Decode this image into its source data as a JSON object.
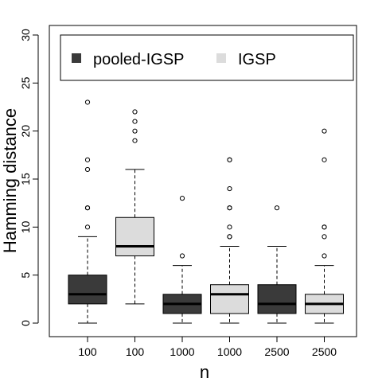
{
  "chart_data": {
    "type": "boxplot",
    "title": "",
    "xlabel": "n",
    "ylabel": "Hamming distance",
    "ylim": [
      0,
      30
    ],
    "yticks": [
      0,
      5,
      10,
      15,
      20,
      25,
      30
    ],
    "categories": [
      "100",
      "100",
      "1000",
      "1000",
      "2500",
      "2500"
    ],
    "legend": {
      "placement": "top",
      "entries": [
        {
          "label": "pooled-IGSP",
          "color": "#3a3a3a"
        },
        {
          "label": "IGSP",
          "color": "#dcdcdc"
        }
      ]
    },
    "boxes": [
      {
        "category": "100",
        "series": "pooled-IGSP",
        "color": "#3a3a3a",
        "whisker_low": 0,
        "q1": 2,
        "median": 3,
        "q3": 5,
        "whisker_high": 9,
        "outliers": [
          10,
          12,
          12,
          16,
          17,
          23
        ]
      },
      {
        "category": "100",
        "series": "IGSP",
        "color": "#dcdcdc",
        "whisker_low": 2,
        "q1": 7,
        "median": 8,
        "q3": 11,
        "whisker_high": 16,
        "outliers": [
          19,
          20,
          21,
          22
        ]
      },
      {
        "category": "1000",
        "series": "pooled-IGSP",
        "color": "#3a3a3a",
        "whisker_low": 0,
        "q1": 1,
        "median": 2,
        "q3": 3,
        "whisker_high": 6,
        "outliers": [
          7,
          13
        ]
      },
      {
        "category": "1000",
        "series": "IGSP",
        "color": "#dcdcdc",
        "whisker_low": 0,
        "q1": 1,
        "median": 3,
        "q3": 4,
        "whisker_high": 8,
        "outliers": [
          9,
          9,
          10,
          12,
          12,
          14,
          17,
          17
        ]
      },
      {
        "category": "2500",
        "series": "pooled-IGSP",
        "color": "#3a3a3a",
        "whisker_low": 0,
        "q1": 1,
        "median": 2,
        "q3": 4,
        "whisker_high": 8,
        "outliers": [
          12
        ]
      },
      {
        "category": "2500",
        "series": "IGSP",
        "color": "#dcdcdc",
        "whisker_low": 0,
        "q1": 1,
        "median": 2,
        "q3": 3,
        "whisker_high": 6,
        "outliers": [
          7,
          9,
          10,
          10,
          17,
          20
        ]
      }
    ],
    "grid": false
  }
}
